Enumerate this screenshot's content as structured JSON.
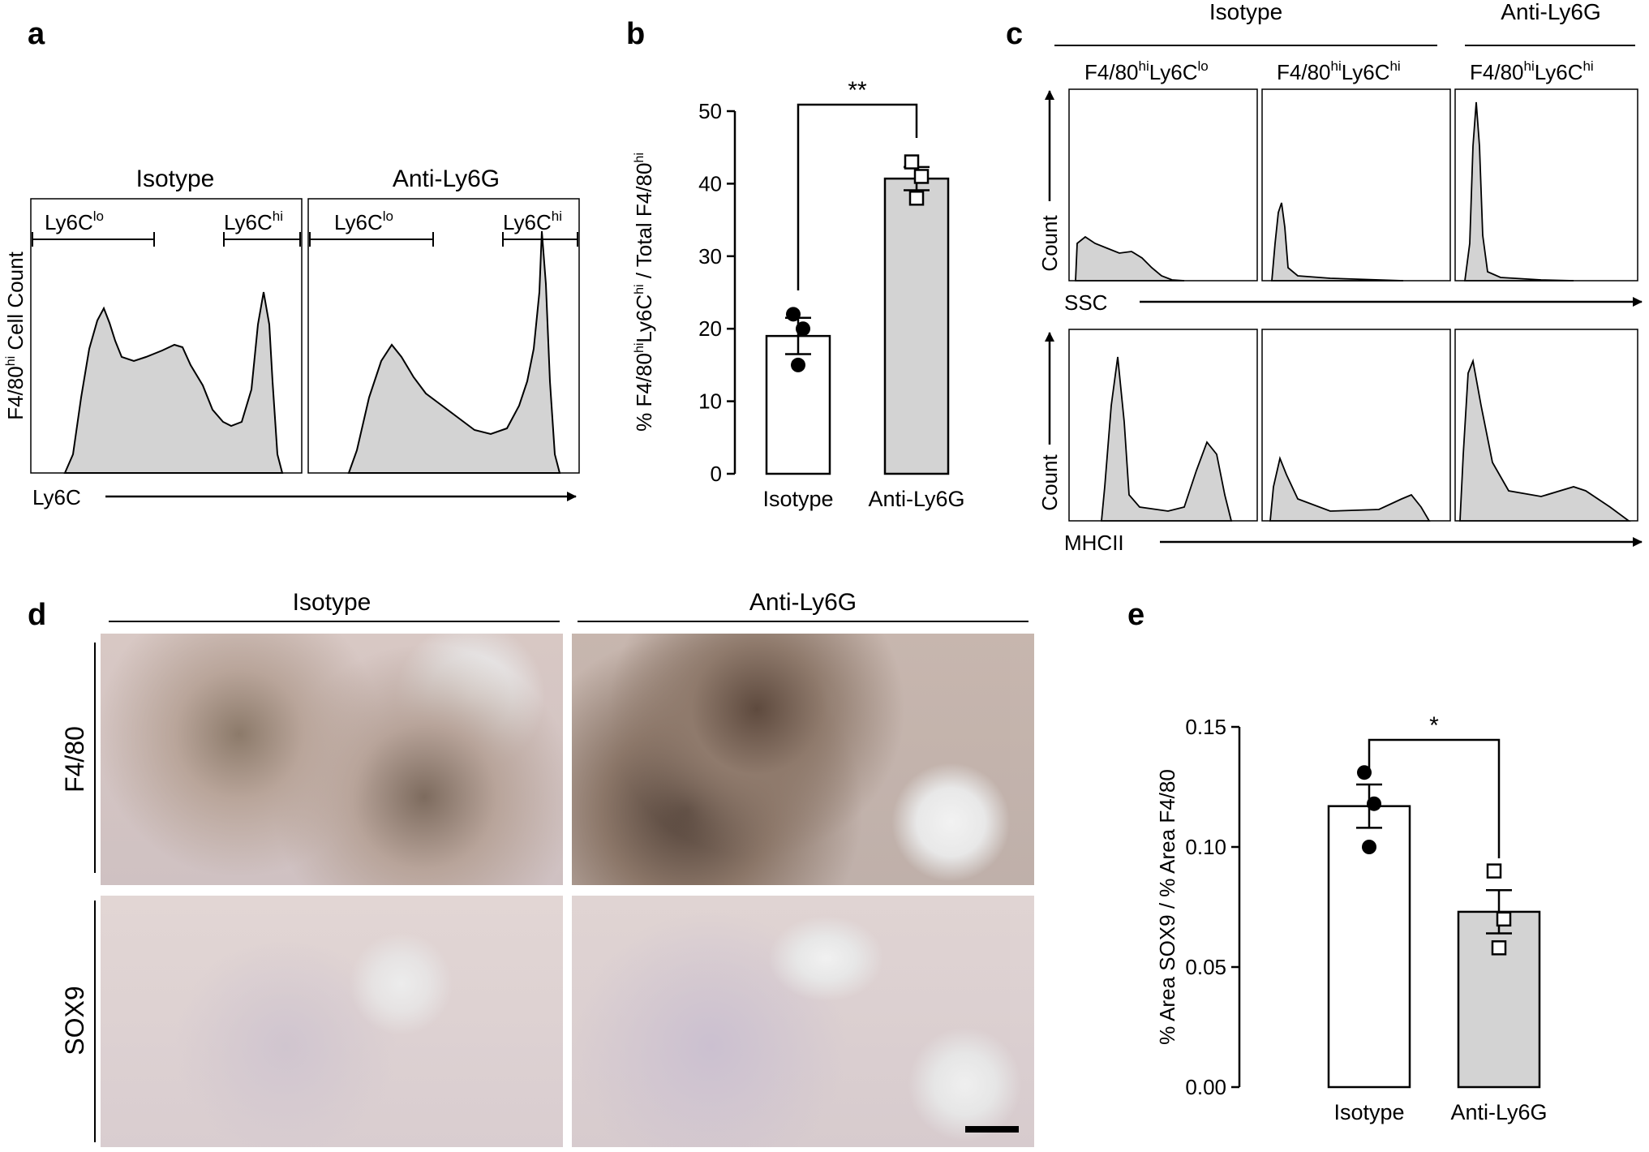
{
  "panel_labels": [
    "a",
    "b",
    "c",
    "d",
    "e"
  ],
  "panel_a": {
    "groups": [
      "Isotype",
      "Anti-Ly6G"
    ],
    "gate_lo": {
      "base": "Ly6C",
      "sup": "lo"
    },
    "gate_hi": {
      "base": "Ly6C",
      "sup": "hi"
    },
    "ylabel": {
      "pre": "F4/80",
      "sup": "hi",
      "post": " Cell Count"
    },
    "xlabel": "Ly6C"
  },
  "panel_c": {
    "groups": [
      "Isotype",
      "Anti-Ly6G"
    ],
    "columns": [
      {
        "p1": "F4/80",
        "s1": "hi",
        "p2": "Ly6C",
        "s2": "lo"
      },
      {
        "p1": "F4/80",
        "s1": "hi",
        "p2": "Ly6C",
        "s2": "hi"
      },
      {
        "p1": "F4/80",
        "s1": "hi",
        "p2": "Ly6C",
        "s2": "hi"
      }
    ],
    "ylabel": "Count",
    "xlabel_top": "SSC",
    "xlabel_bottom": "MHCII"
  },
  "panel_d": {
    "groups": [
      "Isotype",
      "Anti-Ly6G"
    ],
    "rows": [
      "F4/80",
      "SOX9"
    ]
  },
  "chart_data": [
    {
      "panel": "b",
      "type": "bar",
      "categories": [
        "Isotype",
        "Anti-Ly6G"
      ],
      "values": [
        19.0,
        40.7
      ],
      "sem": [
        2.5,
        1.6
      ],
      "points": [
        [
          22,
          15,
          20
        ],
        [
          43,
          38,
          41
        ]
      ],
      "ylim": [
        0,
        50
      ],
      "yticks": [
        "0",
        "10",
        "20",
        "30",
        "40",
        "50"
      ],
      "ylabel": {
        "t1": "% F4/80",
        "s1": "hi",
        "t2": "Ly6C",
        "s2": "hi",
        "t3": " / Total F4/80",
        "s3": "hi"
      },
      "significance": "**",
      "colors": {
        "Isotype": "#ffffff",
        "Anti-Ly6G": "#d3d3d3"
      }
    },
    {
      "panel": "e",
      "type": "bar",
      "categories": [
        "Isotype",
        "Anti-Ly6G"
      ],
      "values": [
        0.117,
        0.073
      ],
      "sem": [
        0.009,
        0.009
      ],
      "points": [
        [
          0.131,
          0.1,
          0.118
        ],
        [
          0.09,
          0.058,
          0.07
        ]
      ],
      "ylim": [
        0,
        0.15
      ],
      "yticks": [
        "0.00",
        "0.05",
        "0.10",
        "0.15"
      ],
      "ylabel": "% Area SOX9 / % Area F4/80",
      "significance": "*",
      "colors": {
        "Isotype": "#ffffff",
        "Anti-Ly6G": "#d3d3d3"
      }
    }
  ]
}
